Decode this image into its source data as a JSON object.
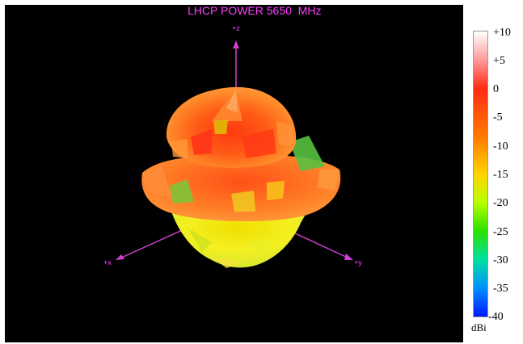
{
  "chart_data": {
    "type": "heatmap",
    "title": "LHCP POWER 5650  MHz",
    "axes": {
      "z_label": "+z",
      "x_label": "+x",
      "y_label": "+y"
    },
    "colorbar": {
      "ticks": [
        "+10",
        "+5",
        "0",
        "-5",
        "-10",
        "-15",
        "-20",
        "-25",
        "-30",
        "-35",
        "-40"
      ],
      "range": [
        -40,
        10
      ],
      "unit": "dBi",
      "colors": [
        "#ffffff",
        "#ff9a9a",
        "#ff2a14",
        "#ff7a00",
        "#ffd400",
        "#b8ff00",
        "#2ce000",
        "#00e0a0",
        "#0090ff",
        "#0018ff"
      ]
    },
    "pattern_colors": {
      "dominant": "#ff7a14",
      "peak": "#ff3a10",
      "low": "#d8f000",
      "null": "#50d020"
    }
  }
}
